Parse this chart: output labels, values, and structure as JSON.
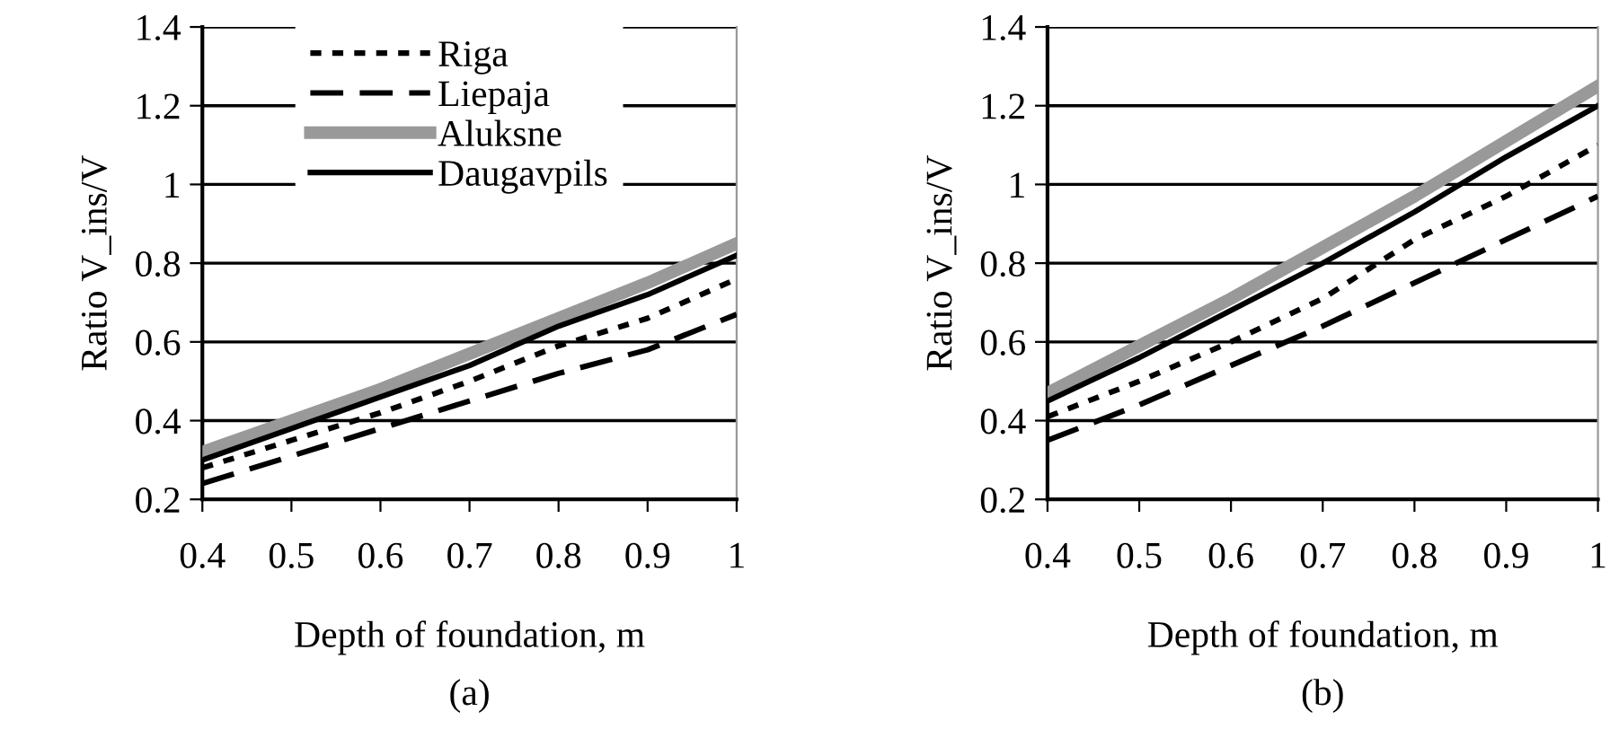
{
  "chart_data": [
    {
      "type": "line",
      "xlabel": "Depth of foundation, m",
      "ylabel": "Ratio V_ins/V",
      "annotations": [
        "(a)"
      ],
      "x": [
        0.4,
        0.5,
        0.6,
        0.7,
        0.8,
        0.9,
        1.0
      ],
      "series": [
        {
          "name": "Riga",
          "color": "#000000",
          "line_style": "dotted",
          "values": [
            0.28,
            0.35,
            0.42,
            0.5,
            0.59,
            0.66,
            0.76
          ]
        },
        {
          "name": "Liepaja",
          "color": "#000000",
          "line_style": "dashed",
          "values": [
            0.24,
            0.31,
            0.38,
            0.45,
            0.52,
            0.58,
            0.67
          ]
        },
        {
          "name": "Aluksne",
          "color": "#999999",
          "line_style": "solid",
          "values": [
            0.32,
            0.4,
            0.48,
            0.57,
            0.66,
            0.75,
            0.85
          ]
        },
        {
          "name": "Daugavpils",
          "color": "#000000",
          "line_style": "solid",
          "values": [
            0.3,
            0.38,
            0.46,
            0.54,
            0.64,
            0.72,
            0.82
          ]
        }
      ],
      "xlim": [
        0.4,
        1.0
      ],
      "xticks": [
        0.4,
        0.5,
        0.6,
        0.7,
        0.8,
        0.9,
        1
      ],
      "ylim": [
        0.2,
        1.4
      ],
      "yticks": [
        0.2,
        0.4,
        0.6,
        0.8,
        1,
        1.2,
        1.4
      ],
      "grid": "y",
      "legend": "top left"
    },
    {
      "type": "line",
      "xlabel": "Depth of foundation, m",
      "ylabel": "Ratio V_ins/V",
      "annotations": [
        "(b)"
      ],
      "x": [
        0.4,
        0.5,
        0.6,
        0.7,
        0.8,
        0.9,
        1.0
      ],
      "series": [
        {
          "color": "#000000",
          "line_style": "dotted",
          "values": [
            0.41,
            0.5,
            0.6,
            0.71,
            0.86,
            0.97,
            1.1
          ]
        },
        {
          "color": "#000000",
          "line_style": "dashed",
          "values": [
            0.35,
            0.44,
            0.54,
            0.64,
            0.75,
            0.86,
            0.97
          ]
        },
        {
          "color": "#999999",
          "line_style": "solid",
          "values": [
            0.47,
            0.59,
            0.71,
            0.84,
            0.97,
            1.11,
            1.25
          ]
        },
        {
          "color": "#000000",
          "line_style": "solid",
          "values": [
            0.45,
            0.56,
            0.68,
            0.8,
            0.93,
            1.07,
            1.2
          ]
        }
      ],
      "xlim": [
        0.4,
        1.0
      ],
      "xticks": [
        0.4,
        0.5,
        0.6,
        0.7,
        0.8,
        0.9,
        1
      ],
      "ylim": [
        0.2,
        1.4
      ],
      "yticks": [
        0.2,
        0.4,
        0.6,
        0.8,
        1,
        1.2,
        1.4
      ],
      "grid": "y"
    }
  ]
}
